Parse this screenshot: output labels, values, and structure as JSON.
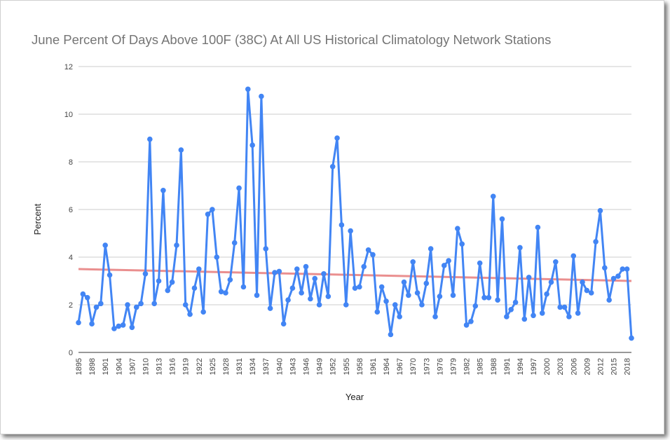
{
  "chart_data": {
    "type": "line",
    "title": "June Percent Of Days Above 100F (38C) At All US Historical Climatology Network Stations",
    "xlabel": "Year",
    "ylabel": "Percent",
    "ylim": [
      0,
      12
    ],
    "yticks": [
      0,
      2,
      4,
      6,
      8,
      10,
      12
    ],
    "xticks": [
      1895,
      1898,
      1901,
      1904,
      1907,
      1910,
      1913,
      1916,
      1919,
      1922,
      1925,
      1928,
      1931,
      1934,
      1937,
      1940,
      1943,
      1946,
      1949,
      1952,
      1955,
      1958,
      1961,
      1964,
      1967,
      1970,
      1973,
      1976,
      1979,
      1982,
      1985,
      1988,
      1991,
      1994,
      1997,
      2000,
      2003,
      2006,
      2009,
      2012,
      2015,
      2018
    ],
    "grid": true,
    "legend": "none",
    "series": [
      {
        "color": "#4285f4",
        "x": [
          1895,
          1896,
          1897,
          1898,
          1899,
          1900,
          1901,
          1902,
          1903,
          1904,
          1905,
          1906,
          1907,
          1908,
          1909,
          1910,
          1911,
          1912,
          1913,
          1914,
          1915,
          1916,
          1917,
          1918,
          1919,
          1920,
          1921,
          1922,
          1923,
          1924,
          1925,
          1926,
          1927,
          1928,
          1929,
          1930,
          1931,
          1932,
          1933,
          1934,
          1935,
          1936,
          1937,
          1938,
          1939,
          1940,
          1941,
          1942,
          1943,
          1944,
          1945,
          1946,
          1947,
          1948,
          1949,
          1950,
          1951,
          1952,
          1953,
          1954,
          1955,
          1956,
          1957,
          1958,
          1959,
          1960,
          1961,
          1962,
          1963,
          1964,
          1965,
          1966,
          1967,
          1968,
          1969,
          1970,
          1971,
          1972,
          1973,
          1974,
          1975,
          1976,
          1977,
          1978,
          1979,
          1980,
          1981,
          1982,
          1983,
          1984,
          1985,
          1986,
          1987,
          1988,
          1989,
          1990,
          1991,
          1992,
          1993,
          1994,
          1995,
          1996,
          1997,
          1998,
          1999,
          2000,
          2001,
          2002,
          2003,
          2004,
          2005,
          2006,
          2007,
          2008,
          2009,
          2010,
          2011,
          2012,
          2013,
          2014,
          2015,
          2016,
          2017,
          2018,
          2019
        ],
        "y": [
          1.25,
          2.45,
          2.3,
          1.2,
          1.9,
          2.05,
          4.5,
          3.25,
          1.0,
          1.1,
          1.15,
          2.0,
          1.05,
          1.9,
          2.05,
          3.3,
          8.95,
          2.05,
          3.0,
          6.8,
          2.6,
          2.95,
          4.5,
          8.5,
          2.0,
          1.6,
          2.7,
          3.5,
          1.7,
          5.8,
          6.0,
          4.0,
          2.55,
          2.5,
          3.05,
          4.6,
          6.9,
          2.75,
          11.05,
          8.7,
          2.4,
          10.75,
          4.35,
          1.85,
          3.35,
          3.4,
          1.2,
          2.2,
          2.7,
          3.5,
          2.5,
          3.6,
          2.25,
          3.1,
          2.0,
          3.3,
          2.35,
          7.8,
          9.0,
          5.35,
          2.0,
          5.1,
          2.7,
          2.75,
          3.6,
          4.3,
          4.1,
          1.7,
          2.75,
          2.15,
          0.75,
          2.0,
          1.5,
          2.95,
          2.4,
          3.8,
          2.5,
          2.0,
          2.9,
          4.35,
          1.5,
          2.35,
          3.65,
          3.85,
          2.4,
          5.2,
          4.55,
          1.15,
          1.3,
          1.95,
          3.75,
          2.3,
          2.3,
          6.55,
          2.2,
          5.6,
          1.5,
          1.8,
          2.1,
          4.4,
          1.4,
          3.15,
          1.55,
          5.25,
          1.65,
          2.45,
          2.95,
          3.8,
          1.9,
          1.9,
          1.5,
          4.05,
          1.65,
          2.95,
          2.6,
          2.5,
          4.65,
          5.95,
          3.55,
          2.2,
          3.1,
          3.2,
          3.5,
          3.5,
          0.6
        ]
      }
    ],
    "trendline": {
      "color": "#e57373",
      "start": [
        1895,
        3.5
      ],
      "end": [
        2019,
        3.0
      ]
    }
  }
}
